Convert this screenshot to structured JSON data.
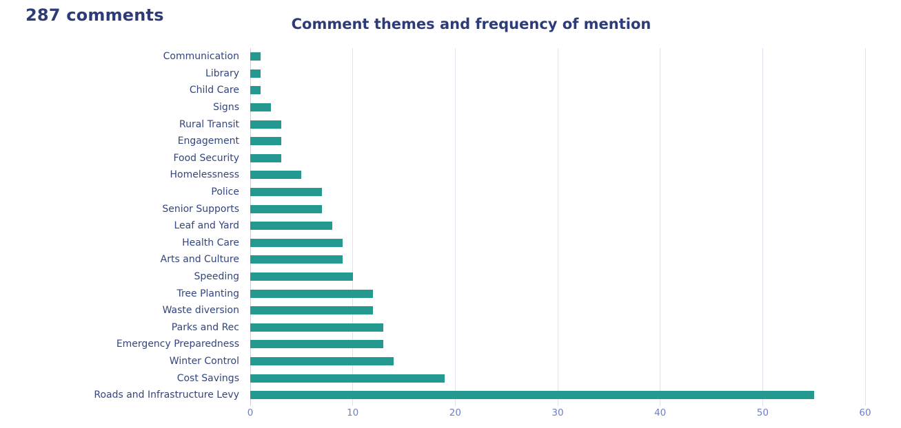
{
  "header": {
    "comments_label": "287 comments"
  },
  "colors": {
    "bar": "#23998f",
    "title": "#2d3c78",
    "category_label": "#33457e",
    "tick_label": "#6d7ec9",
    "gridline": "#dde3f3",
    "axis_line": "#c6cfe6",
    "background": "#ffffff"
  },
  "chart_data": {
    "type": "bar",
    "orientation": "horizontal",
    "title": "Comment themes and frequency of mention",
    "xlabel": "",
    "ylabel": "",
    "xlim": [
      0,
      60
    ],
    "x_ticks": [
      0,
      10,
      20,
      30,
      40,
      50,
      60
    ],
    "grid": "vertical-on",
    "legend": "none",
    "categories": [
      "Communication",
      "Library",
      "Child Care",
      "Signs",
      "Rural Transit",
      "Engagement",
      "Food Security",
      "Homelessness",
      "Police",
      "Senior Supports",
      "Leaf and Yard",
      "Health Care",
      "Arts and Culture",
      "Speeding",
      "Tree Planting",
      "Waste diversion",
      "Parks and Rec",
      "Emergency Preparedness",
      "Winter Control",
      "Cost Savings",
      "Roads and Infrastructure Levy"
    ],
    "values": [
      1,
      1,
      1,
      2,
      3,
      3,
      3,
      5,
      7,
      7,
      8,
      9,
      9,
      10,
      12,
      12,
      13,
      13,
      14,
      19,
      55
    ]
  }
}
